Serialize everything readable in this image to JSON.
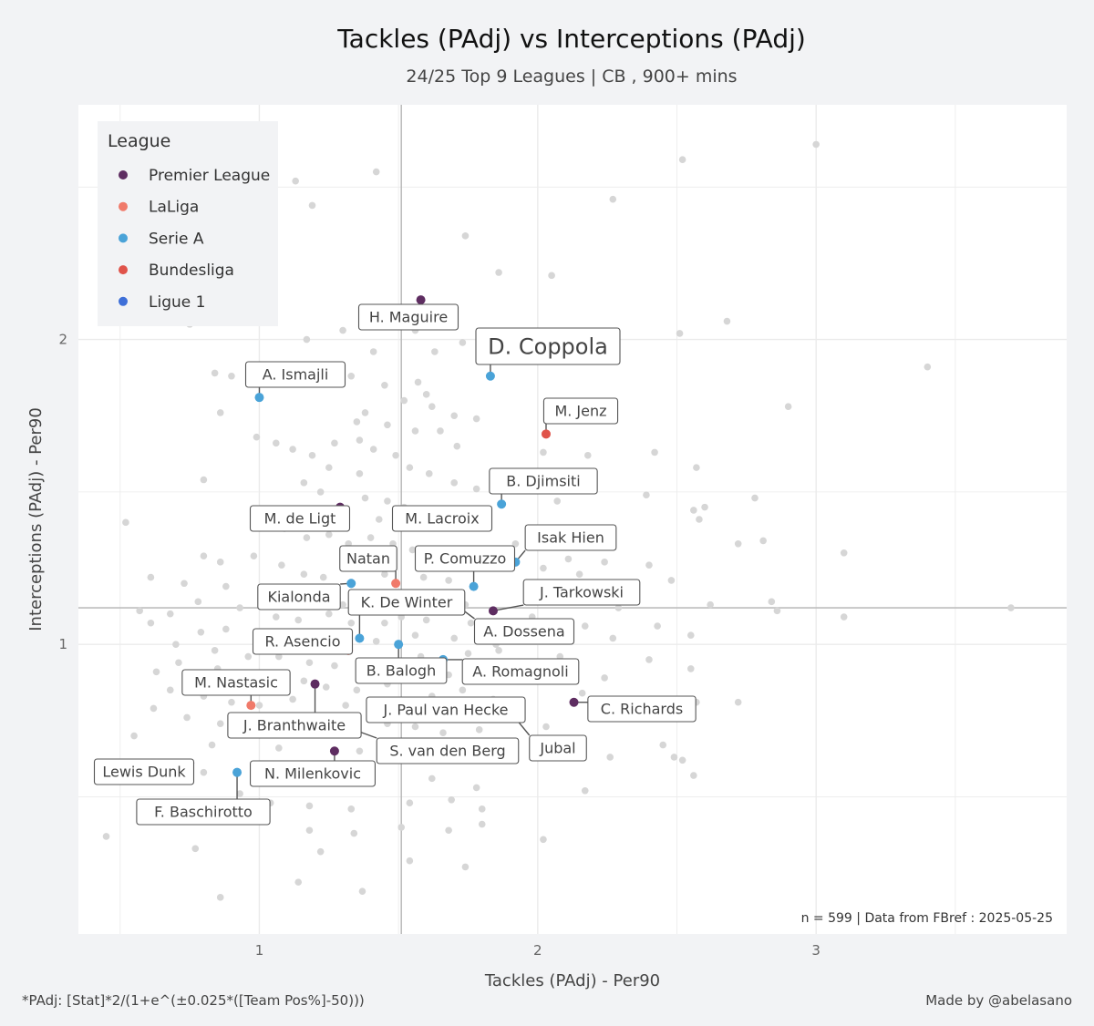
{
  "chart_data": {
    "type": "scatter",
    "title": "Tackles (PAdj)  vs  Interceptions (PAdj)",
    "subtitle": "24/25 Top 9 Leagues | CB , 900+ mins",
    "xlabel": "Tackles (PAdj)  -  Per90",
    "ylabel": "Interceptions (PAdj)  -  Per90",
    "xlim": [
      0.35,
      3.9
    ],
    "ylim": [
      0.05,
      2.77
    ],
    "x_ticks": [
      1,
      2,
      3
    ],
    "y_ticks": [
      1,
      2
    ],
    "x_median": 1.51,
    "y_median": 1.12,
    "grid": true,
    "legend": {
      "title": "League",
      "placement": "top-left",
      "entries": [
        {
          "name": "Premier League",
          "color": "#5e2d61"
        },
        {
          "name": "LaLiga",
          "color": "#f07a6a"
        },
        {
          "name": "Serie A",
          "color": "#4aa3d8"
        },
        {
          "name": "Bundesliga",
          "color": "#e0534a"
        },
        {
          "name": "Ligue 1",
          "color": "#3e6fd8"
        }
      ]
    },
    "annotation": "n =  599  | Data from  FBref : 2025-05-25",
    "highlighted": [
      {
        "name": "H. Maguire",
        "league": "Premier League",
        "x": 1.58,
        "y": 2.13
      },
      {
        "name": "D. Coppola",
        "league": "Serie A",
        "x": 1.83,
        "y": 1.88,
        "emphasis": true
      },
      {
        "name": "A. Ismajli",
        "league": "Serie A",
        "x": 1.0,
        "y": 1.81
      },
      {
        "name": "M. Jenz",
        "league": "Bundesliga",
        "x": 2.03,
        "y": 1.69
      },
      {
        "name": "B. Djimsiti",
        "league": "Serie A",
        "x": 1.87,
        "y": 1.46
      },
      {
        "name": "M. de Ligt",
        "league": "Premier League",
        "x": 1.29,
        "y": 1.45
      },
      {
        "name": "M. Lacroix",
        "league": "Premier League",
        "x": 1.82,
        "y": 1.41
      },
      {
        "name": "Isak Hien",
        "league": "Serie A",
        "x": 1.92,
        "y": 1.27
      },
      {
        "name": "Natan",
        "league": "LaLiga",
        "x": 1.49,
        "y": 1.2
      },
      {
        "name": "P. Comuzzo",
        "league": "Serie A",
        "x": 1.77,
        "y": 1.19
      },
      {
        "name": "Kialonda",
        "league": "Serie A",
        "x": 1.33,
        "y": 1.2
      },
      {
        "name": "J. Tarkowski",
        "league": "Premier League",
        "x": 1.84,
        "y": 1.11
      },
      {
        "name": "K. De Winter",
        "league": "Serie A",
        "x": 1.36,
        "y": 1.02
      },
      {
        "name": "A. Dossena",
        "league": "Serie A",
        "x": 1.69,
        "y": 1.14
      },
      {
        "name": "R. Asencio",
        "league": "LaLiga",
        "x": 1.32,
        "y": 0.98
      },
      {
        "name": "B. Balogh",
        "league": "Serie A",
        "x": 1.5,
        "y": 1.0
      },
      {
        "name": "A. Romagnoli",
        "league": "Serie A",
        "x": 1.66,
        "y": 0.95
      },
      {
        "name": "M. Nastasic",
        "league": "LaLiga",
        "x": 0.97,
        "y": 0.8
      },
      {
        "name": "J. Branthwaite",
        "league": "Premier League",
        "x": 1.2,
        "y": 0.87
      },
      {
        "name": "C. Richards",
        "league": "Premier League",
        "x": 2.13,
        "y": 0.81
      },
      {
        "name": "J. Paul van Hecke",
        "league": "Premier League",
        "x": 1.91,
        "y": 0.8
      },
      {
        "name": "Jubal",
        "league": "Ligue 1",
        "x": 1.9,
        "y": 0.78
      },
      {
        "name": "S. van den Berg",
        "league": "Premier League",
        "x": 1.34,
        "y": 0.72
      },
      {
        "name": "Lewis Dunk",
        "league": "Premier League",
        "x": 0.75,
        "y": 0.61
      },
      {
        "name": "N. Milenkovic",
        "league": "Premier League",
        "x": 1.27,
        "y": 0.65
      },
      {
        "name": "F. Baschirotto",
        "league": "Serie A",
        "x": 0.92,
        "y": 0.58
      }
    ],
    "others": [
      [
        3.0,
        2.64
      ],
      [
        2.52,
        2.59
      ],
      [
        2.27,
        2.46
      ],
      [
        1.42,
        2.55
      ],
      [
        1.13,
        2.52
      ],
      [
        0.94,
        2.54
      ],
      [
        1.19,
        2.44
      ],
      [
        1.74,
        2.34
      ],
      [
        2.05,
        2.21
      ],
      [
        1.86,
        2.22
      ],
      [
        2.68,
        2.06
      ],
      [
        2.51,
        2.02
      ],
      [
        0.75,
        2.05
      ],
      [
        1.17,
        2.0
      ],
      [
        1.3,
        2.03
      ],
      [
        1.56,
        2.03
      ],
      [
        1.63,
        1.96
      ],
      [
        1.73,
        1.99
      ],
      [
        0.84,
        1.89
      ],
      [
        0.9,
        1.88
      ],
      [
        1.22,
        1.9
      ],
      [
        1.33,
        1.88
      ],
      [
        1.57,
        1.86
      ],
      [
        1.6,
        1.82
      ],
      [
        1.62,
        1.78
      ],
      [
        1.45,
        1.85
      ],
      [
        1.52,
        1.8
      ],
      [
        1.38,
        1.76
      ],
      [
        1.7,
        1.75
      ],
      [
        1.78,
        1.74
      ],
      [
        0.86,
        1.76
      ],
      [
        1.35,
        1.73
      ],
      [
        1.46,
        1.72
      ],
      [
        1.56,
        1.7
      ],
      [
        1.65,
        1.7
      ],
      [
        1.71,
        1.65
      ],
      [
        0.99,
        1.68
      ],
      [
        1.06,
        1.66
      ],
      [
        1.12,
        1.64
      ],
      [
        1.19,
        1.62
      ],
      [
        1.27,
        1.66
      ],
      [
        1.36,
        1.67
      ],
      [
        1.41,
        1.64
      ],
      [
        1.49,
        1.62
      ],
      [
        1.54,
        1.58
      ],
      [
        1.61,
        1.56
      ],
      [
        1.7,
        1.53
      ],
      [
        1.78,
        1.51
      ],
      [
        2.02,
        1.63
      ],
      [
        2.18,
        1.62
      ],
      [
        2.42,
        1.63
      ],
      [
        2.57,
        1.58
      ],
      [
        2.9,
        1.78
      ],
      [
        3.4,
        1.91
      ],
      [
        0.8,
        1.54
      ],
      [
        1.16,
        1.53
      ],
      [
        1.22,
        1.5
      ],
      [
        1.38,
        1.48
      ],
      [
        1.46,
        1.47
      ],
      [
        1.52,
        1.45
      ],
      [
        1.58,
        1.43
      ],
      [
        1.67,
        1.42
      ],
      [
        1.74,
        1.4
      ],
      [
        2.07,
        1.47
      ],
      [
        2.39,
        1.49
      ],
      [
        2.56,
        1.44
      ],
      [
        2.6,
        1.45
      ],
      [
        2.78,
        1.48
      ],
      [
        0.52,
        1.4
      ],
      [
        0.98,
        1.4
      ],
      [
        1.09,
        1.38
      ],
      [
        1.17,
        1.35
      ],
      [
        1.25,
        1.36
      ],
      [
        1.32,
        1.33
      ],
      [
        1.4,
        1.35
      ],
      [
        1.48,
        1.33
      ],
      [
        1.55,
        1.31
      ],
      [
        1.62,
        1.29
      ],
      [
        1.92,
        1.33
      ],
      [
        2.11,
        1.28
      ],
      [
        2.24,
        1.27
      ],
      [
        2.4,
        1.26
      ],
      [
        2.58,
        1.41
      ],
      [
        2.72,
        1.33
      ],
      [
        2.81,
        1.34
      ],
      [
        3.1,
        1.3
      ],
      [
        0.8,
        1.29
      ],
      [
        0.86,
        1.27
      ],
      [
        0.98,
        1.29
      ],
      [
        1.08,
        1.26
      ],
      [
        1.16,
        1.23
      ],
      [
        1.23,
        1.22
      ],
      [
        1.36,
        1.25
      ],
      [
        1.45,
        1.23
      ],
      [
        1.59,
        1.22
      ],
      [
        1.68,
        1.21
      ],
      [
        2.02,
        1.25
      ],
      [
        2.15,
        1.23
      ],
      [
        2.25,
        1.2
      ],
      [
        2.48,
        1.21
      ],
      [
        0.61,
        1.22
      ],
      [
        0.73,
        1.2
      ],
      [
        0.88,
        1.19
      ],
      [
        1.03,
        1.17
      ],
      [
        1.19,
        1.17
      ],
      [
        1.28,
        1.15
      ],
      [
        1.4,
        1.16
      ],
      [
        1.55,
        1.15
      ],
      [
        1.62,
        1.17
      ],
      [
        1.74,
        1.13
      ],
      [
        1.97,
        1.17
      ],
      [
        2.1,
        1.14
      ],
      [
        2.29,
        1.12
      ],
      [
        2.62,
        1.13
      ],
      [
        2.84,
        1.14
      ],
      [
        3.7,
        1.12
      ],
      [
        0.57,
        1.11
      ],
      [
        0.68,
        1.1
      ],
      [
        0.78,
        1.14
      ],
      [
        0.93,
        1.12
      ],
      [
        1.06,
        1.09
      ],
      [
        1.14,
        1.08
      ],
      [
        1.25,
        1.1
      ],
      [
        1.33,
        1.07
      ],
      [
        1.45,
        1.07
      ],
      [
        1.6,
        1.08
      ],
      [
        1.76,
        1.07
      ],
      [
        1.98,
        1.09
      ],
      [
        2.17,
        1.06
      ],
      [
        2.43,
        1.06
      ],
      [
        2.86,
        1.11
      ],
      [
        3.1,
        1.09
      ],
      [
        0.61,
        1.07
      ],
      [
        0.79,
        1.04
      ],
      [
        0.88,
        1.05
      ],
      [
        1.02,
        1.03
      ],
      [
        1.12,
        1.01
      ],
      [
        1.22,
        1.02
      ],
      [
        1.3,
        1.0
      ],
      [
        1.42,
        1.01
      ],
      [
        1.56,
        1.03
      ],
      [
        1.7,
        1.02
      ],
      [
        1.85,
        1.0
      ],
      [
        2.04,
        1.03
      ],
      [
        2.27,
        1.02
      ],
      [
        2.55,
        1.03
      ],
      [
        0.7,
        1.0
      ],
      [
        0.84,
        0.98
      ],
      [
        0.96,
        0.96
      ],
      [
        1.07,
        0.96
      ],
      [
        1.18,
        0.94
      ],
      [
        1.27,
        0.93
      ],
      [
        1.39,
        0.92
      ],
      [
        1.48,
        0.94
      ],
      [
        1.58,
        0.96
      ],
      [
        1.75,
        0.97
      ],
      [
        1.86,
        0.98
      ],
      [
        2.08,
        0.96
      ],
      [
        2.4,
        0.95
      ],
      [
        0.71,
        0.94
      ],
      [
        0.85,
        0.92
      ],
      [
        0.95,
        0.9
      ],
      [
        1.05,
        0.88
      ],
      [
        1.16,
        0.88
      ],
      [
        1.24,
        0.86
      ],
      [
        1.35,
        0.85
      ],
      [
        1.46,
        0.87
      ],
      [
        1.57,
        0.89
      ],
      [
        1.68,
        0.9
      ],
      [
        1.8,
        0.88
      ],
      [
        2.24,
        0.89
      ],
      [
        2.55,
        0.92
      ],
      [
        0.63,
        0.91
      ],
      [
        0.68,
        0.85
      ],
      [
        0.8,
        0.83
      ],
      [
        0.9,
        0.81
      ],
      [
        1.0,
        0.8
      ],
      [
        1.12,
        0.82
      ],
      [
        1.31,
        0.8
      ],
      [
        1.42,
        0.81
      ],
      [
        1.52,
        0.79
      ],
      [
        1.62,
        0.83
      ],
      [
        1.73,
        0.85
      ],
      [
        1.84,
        0.82
      ],
      [
        2.16,
        0.84
      ],
      [
        2.4,
        0.82
      ],
      [
        2.57,
        0.81
      ],
      [
        2.72,
        0.81
      ],
      [
        0.62,
        0.79
      ],
      [
        0.74,
        0.76
      ],
      [
        0.86,
        0.74
      ],
      [
        1.06,
        0.75
      ],
      [
        1.16,
        0.73
      ],
      [
        1.24,
        0.76
      ],
      [
        1.46,
        0.74
      ],
      [
        1.56,
        0.73
      ],
      [
        1.66,
        0.71
      ],
      [
        1.79,
        0.72
      ],
      [
        2.03,
        0.73
      ],
      [
        2.45,
        0.67
      ],
      [
        2.49,
        0.63
      ],
      [
        0.55,
        0.7
      ],
      [
        0.83,
        0.67
      ],
      [
        1.07,
        0.66
      ],
      [
        1.36,
        0.65
      ],
      [
        1.56,
        0.64
      ],
      [
        1.7,
        0.62
      ],
      [
        1.86,
        0.64
      ],
      [
        2.26,
        0.63
      ],
      [
        2.52,
        0.62
      ],
      [
        2.56,
        0.57
      ],
      [
        0.8,
        0.58
      ],
      [
        1.2,
        0.56
      ],
      [
        1.4,
        0.55
      ],
      [
        1.62,
        0.56
      ],
      [
        1.78,
        0.53
      ],
      [
        2.17,
        0.52
      ],
      [
        0.93,
        0.51
      ],
      [
        1.04,
        0.48
      ],
      [
        1.18,
        0.47
      ],
      [
        1.33,
        0.46
      ],
      [
        1.54,
        0.48
      ],
      [
        1.69,
        0.49
      ],
      [
        1.8,
        0.46
      ],
      [
        0.65,
        0.46
      ],
      [
        0.81,
        0.46
      ],
      [
        1.01,
        0.42
      ],
      [
        1.18,
        0.39
      ],
      [
        1.34,
        0.38
      ],
      [
        1.51,
        0.4
      ],
      [
        1.68,
        0.39
      ],
      [
        1.8,
        0.41
      ],
      [
        2.02,
        0.36
      ],
      [
        0.45,
        0.37
      ],
      [
        0.77,
        0.33
      ],
      [
        1.22,
        0.32
      ],
      [
        1.54,
        0.29
      ],
      [
        1.74,
        0.27
      ],
      [
        1.37,
        0.19
      ],
      [
        1.14,
        0.22
      ],
      [
        0.86,
        0.17
      ],
      [
        1.18,
        1.04
      ],
      [
        1.3,
        1.13
      ],
      [
        1.42,
        1.12
      ],
      [
        1.51,
        1.09
      ],
      [
        1.64,
        1.11
      ],
      [
        1.43,
        1.41
      ],
      [
        1.36,
        1.56
      ],
      [
        1.25,
        1.58
      ],
      [
        1.41,
        1.96
      ]
    ]
  },
  "footer": {
    "left_note": "*PAdj: [Stat]*2/(1+e^(±0.025*([Team Pos%]-50)))",
    "credit": "Made by @abelasano"
  }
}
